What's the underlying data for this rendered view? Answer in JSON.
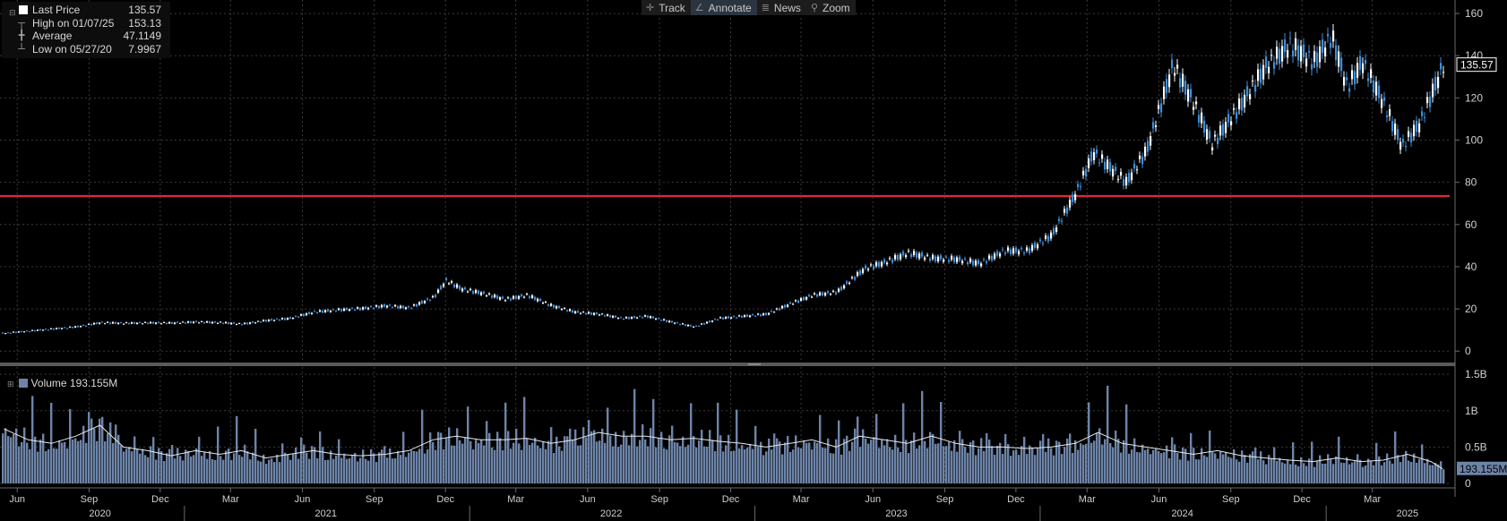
{
  "toolbar": {
    "items": [
      {
        "label": "Track",
        "icon": "crosshair-icon",
        "active": false
      },
      {
        "label": "Annotate",
        "icon": "pencil-icon",
        "active": true
      },
      {
        "label": "News",
        "icon": "news-icon",
        "active": false
      },
      {
        "label": "Zoom",
        "icon": "magnifier-icon",
        "active": false
      }
    ]
  },
  "legend": {
    "expander": "⊟",
    "last_price": {
      "label": "Last Price",
      "value": "135.57"
    },
    "high": {
      "label": "High on 01/07/25",
      "value": "153.13"
    },
    "average": {
      "label": "Average",
      "value": "47.1149"
    },
    "low": {
      "label": "Low on 05/27/20",
      "value": "7.9967"
    }
  },
  "volume_legend": {
    "expander": "⊞",
    "label": "Volume",
    "value": "193.155M"
  },
  "colors": {
    "background": "#000000",
    "grid": "#3a3a3a",
    "price_up": "#ffffff",
    "price_down": "#3b8fe0",
    "reference_line": "#e0283a",
    "volume_fill": "#6d84a8",
    "volume_ma": "#e8e8e8"
  },
  "chart_data": [
    {
      "type": "line",
      "name": "Last Price",
      "x": [
        "2020-05-15",
        "2020-06-15",
        "2020-07-15",
        "2020-08-15",
        "2020-09-15",
        "2020-10-15",
        "2020-11-15",
        "2020-12-15",
        "2021-01-15",
        "2021-02-15",
        "2021-03-15",
        "2021-04-15",
        "2021-05-15",
        "2021-06-15",
        "2021-07-15",
        "2021-08-15",
        "2021-09-15",
        "2021-10-15",
        "2021-11-15",
        "2021-12-01",
        "2021-12-20",
        "2022-01-15",
        "2022-02-15",
        "2022-03-15",
        "2022-04-15",
        "2022-05-15",
        "2022-06-15",
        "2022-07-15",
        "2022-08-15",
        "2022-09-15",
        "2022-10-15",
        "2022-11-15",
        "2022-12-15",
        "2023-01-15",
        "2023-02-15",
        "2023-03-15",
        "2023-04-15",
        "2023-05-20",
        "2023-06-15",
        "2023-07-15",
        "2023-08-15",
        "2023-09-15",
        "2023-10-15",
        "2023-11-15",
        "2023-12-15",
        "2024-01-15",
        "2024-02-15",
        "2024-03-08",
        "2024-04-19",
        "2024-05-15",
        "2024-06-18",
        "2024-07-15",
        "2024-08-07",
        "2024-09-15",
        "2024-10-15",
        "2024-11-15",
        "2024-12-15",
        "2025-01-07",
        "2025-01-27",
        "2025-02-15",
        "2025-03-15",
        "2025-04-07",
        "2025-04-30",
        "2025-05-15",
        "2025-05-30"
      ],
      "values": [
        8.5,
        9.5,
        10.5,
        11.5,
        13.5,
        13.2,
        13.4,
        13.3,
        13.8,
        13.5,
        12.8,
        14.5,
        15.5,
        18.5,
        19.5,
        20.2,
        21.5,
        20.5,
        25.5,
        33.5,
        29.5,
        27.5,
        24.5,
        26.5,
        21.5,
        18.5,
        17.5,
        15.5,
        16.5,
        13.8,
        11.5,
        15.5,
        16.5,
        17.5,
        22.5,
        26.5,
        28.0,
        39.0,
        42.0,
        46.5,
        44.0,
        43.5,
        41.5,
        47.5,
        47.5,
        55.0,
        75.0,
        94.0,
        80.0,
        95.0,
        135.5,
        117.0,
        98.0,
        118.0,
        135.0,
        145.0,
        137.0,
        149.0,
        125.0,
        137.0,
        117.0,
        97.0,
        108.0,
        122.0,
        135.57
      ],
      "xlabel": "",
      "ylabel": "",
      "ylim": [
        -5,
        163
      ],
      "yticks": [
        0,
        20,
        40,
        60,
        80,
        100,
        120,
        140,
        160
      ],
      "last_value_label": "135.57",
      "reference_line": 73.5,
      "x_ticks_months": [
        "Jun",
        "Sep",
        "Dec",
        "Mar",
        "Jun",
        "Sep",
        "Dec",
        "Mar",
        "Jun",
        "Sep",
        "Dec",
        "Mar",
        "Jun",
        "Sep",
        "Dec",
        "Mar",
        "Jun",
        "Sep",
        "Dec",
        "Mar"
      ],
      "x_ticks_dates": [
        "2020-06-01",
        "2020-09-01",
        "2020-12-01",
        "2021-03-01",
        "2021-06-01",
        "2021-09-01",
        "2021-12-01",
        "2022-03-01",
        "2022-06-01",
        "2022-09-01",
        "2022-12-01",
        "2023-03-01",
        "2023-06-01",
        "2023-09-01",
        "2023-12-01",
        "2024-03-01",
        "2024-06-01",
        "2024-09-01",
        "2024-12-01",
        "2025-03-01"
      ],
      "x_ticks_years": [
        {
          "label": "2020",
          "date": "2020-09-15"
        },
        {
          "label": "2021",
          "date": "2021-07-01"
        },
        {
          "label": "2022",
          "date": "2022-07-01"
        },
        {
          "label": "2023",
          "date": "2023-07-01"
        },
        {
          "label": "2024",
          "date": "2024-07-01"
        },
        {
          "label": "2025",
          "date": "2025-04-15"
        }
      ],
      "x_range": [
        "2020-05-10",
        "2025-06-08"
      ],
      "grid": true
    },
    {
      "type": "area",
      "name": "Volume",
      "x": [
        "2020-05-15",
        "2020-06-15",
        "2020-07-15",
        "2020-08-15",
        "2020-09-15",
        "2020-10-15",
        "2020-11-15",
        "2020-12-15",
        "2021-01-15",
        "2021-02-15",
        "2021-03-15",
        "2021-04-15",
        "2021-05-15",
        "2021-06-15",
        "2021-07-15",
        "2021-08-15",
        "2021-09-15",
        "2021-10-15",
        "2021-11-15",
        "2021-12-15",
        "2022-01-15",
        "2022-02-15",
        "2022-03-15",
        "2022-04-15",
        "2022-05-15",
        "2022-06-15",
        "2022-07-15",
        "2022-08-15",
        "2022-09-15",
        "2022-10-15",
        "2022-11-15",
        "2022-12-15",
        "2023-01-15",
        "2023-02-15",
        "2023-03-15",
        "2023-04-15",
        "2023-05-15",
        "2023-06-15",
        "2023-07-15",
        "2023-08-15",
        "2023-09-15",
        "2023-10-15",
        "2023-11-15",
        "2023-12-15",
        "2024-01-15",
        "2024-02-15",
        "2024-03-15",
        "2024-04-15",
        "2024-05-15",
        "2024-06-15",
        "2024-07-15",
        "2024-08-15",
        "2024-09-15",
        "2024-10-15",
        "2024-11-15",
        "2024-12-15",
        "2025-01-15",
        "2025-02-15",
        "2025-03-15",
        "2025-04-15",
        "2025-05-15",
        "2025-05-30"
      ],
      "values": [
        0.75,
        0.6,
        0.55,
        0.65,
        0.8,
        0.5,
        0.45,
        0.38,
        0.45,
        0.4,
        0.45,
        0.35,
        0.4,
        0.45,
        0.4,
        0.38,
        0.4,
        0.45,
        0.6,
        0.65,
        0.6,
        0.6,
        0.62,
        0.55,
        0.6,
        0.7,
        0.65,
        0.65,
        0.6,
        0.62,
        0.58,
        0.55,
        0.5,
        0.55,
        0.6,
        0.5,
        0.65,
        0.6,
        0.55,
        0.65,
        0.55,
        0.5,
        0.5,
        0.48,
        0.5,
        0.55,
        0.7,
        0.55,
        0.5,
        0.45,
        0.4,
        0.45,
        0.38,
        0.35,
        0.32,
        0.3,
        0.35,
        0.3,
        0.32,
        0.4,
        0.3,
        0.2
      ],
      "ylim": [
        0,
        1.6
      ],
      "yticks": [
        {
          "v": 0,
          "label": "0"
        },
        {
          "v": 0.5,
          "label": "0.5B"
        },
        {
          "v": 1,
          "label": "1B"
        },
        {
          "v": 1.5,
          "label": "1.5B"
        }
      ],
      "last_value_label": "193.155M"
    }
  ]
}
